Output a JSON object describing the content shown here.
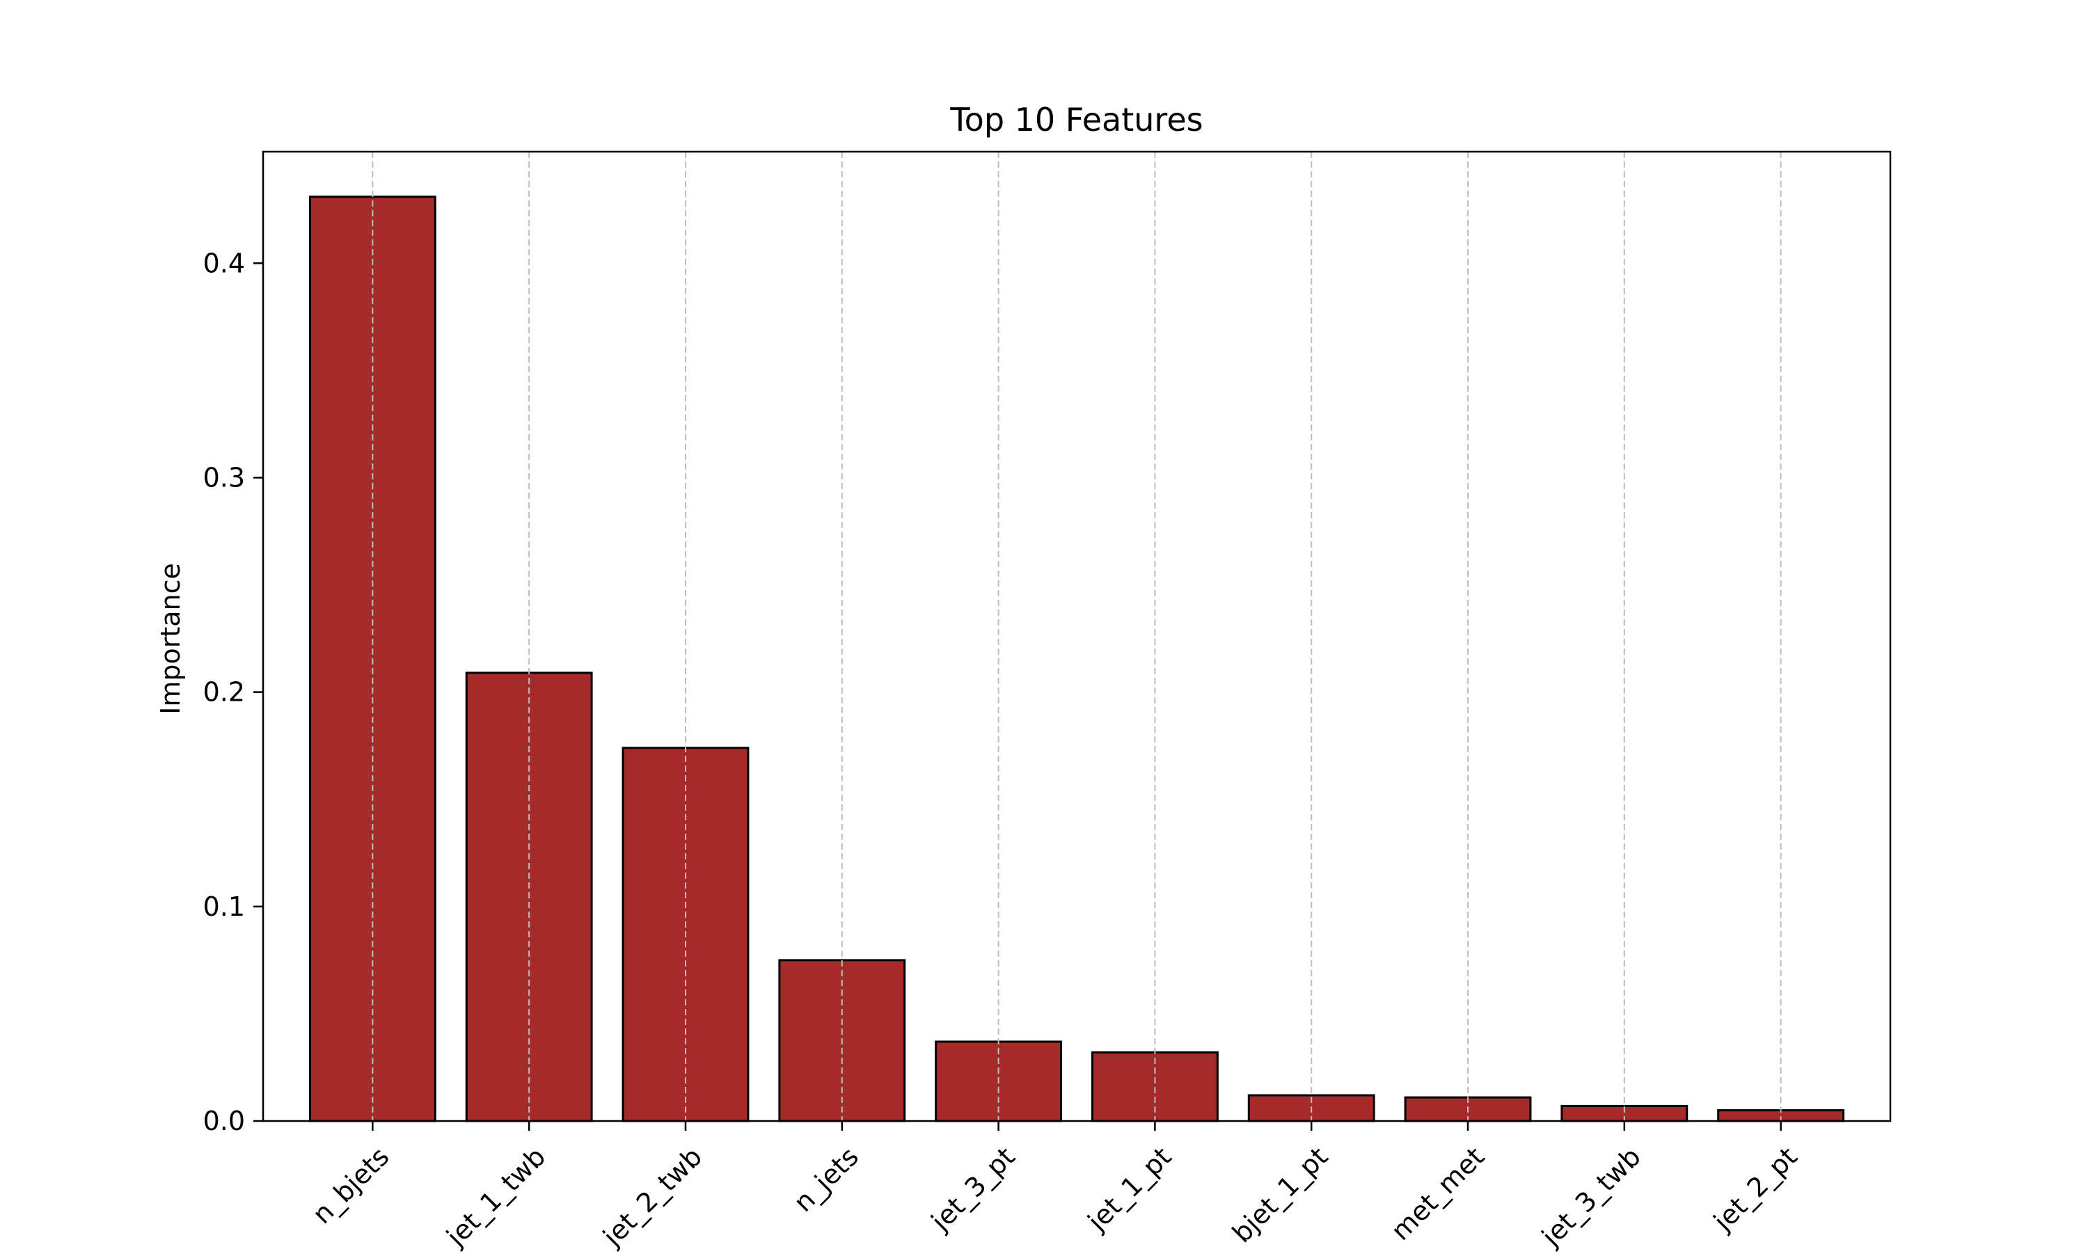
{
  "chart_data": {
    "type": "bar",
    "title": "Top 10 Features",
    "xlabel": "",
    "ylabel": "Importance",
    "categories": [
      "n_bjets",
      "jet_1_twb",
      "jet_2_twb",
      "n_jets",
      "jet_3_pt",
      "jet_1_pt",
      "bjet_1_pt",
      "met_met",
      "jet_3_twb",
      "jet_2_pt"
    ],
    "values": [
      0.431,
      0.209,
      0.174,
      0.075,
      0.037,
      0.032,
      0.012,
      0.011,
      0.007,
      0.005
    ],
    "ylim": [
      0,
      0.452
    ],
    "yticks": [
      {
        "value": 0.0,
        "label": "0.0"
      },
      {
        "value": 0.1,
        "label": "0.1"
      },
      {
        "value": 0.2,
        "label": "0.2"
      },
      {
        "value": 0.3,
        "label": "0.3"
      },
      {
        "value": 0.4,
        "label": "0.4"
      }
    ],
    "grid": "x-axis dashed",
    "bar_color": "#a52a2a",
    "edge_color": "#000000",
    "grid_color": "#bdbdbd"
  }
}
